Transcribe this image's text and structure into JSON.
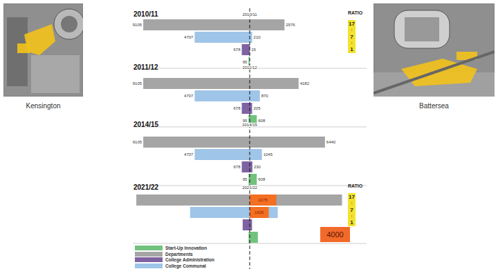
{
  "legend_entries": [
    "Start-Up Innovation",
    "Departments",
    "College Administration",
    "College Communal"
  ],
  "chart_data": [
    {
      "type": "bar",
      "title": "2010/11",
      "orientation": "horizontal",
      "categories": [
        "Departments",
        "College Communal",
        "College Administration",
        "Start-Up Innovation"
      ],
      "colors": [
        "#a5a5a5",
        "#9fc5e8",
        "#7f62a1",
        "#72c27e"
      ],
      "series": [
        {
          "name": "Kensington",
          "values": [
            9105,
            4707,
            678,
            95
          ]
        },
        {
          "name": "Battersea",
          "values": [
            2976,
            210,
            15,
            0
          ]
        }
      ],
      "xlim": [
        0,
        10000
      ],
      "xticks": [
        0,
        10000
      ],
      "tick_labels": false,
      "grid": false,
      "data_labels": true,
      "ratio": {
        "title": "RATIO",
        "values": [
          17,
          7,
          1
        ],
        "separator": ":",
        "color": "#f3e32c"
      }
    },
    {
      "type": "bar",
      "title": "2011/12",
      "orientation": "horizontal",
      "categories": [
        "Departments",
        "College Communal",
        "College Administration",
        "Start-Up Innovation"
      ],
      "colors": [
        "#a5a5a5",
        "#9fc5e8",
        "#7f62a1",
        "#72c27e"
      ],
      "series": [
        {
          "name": "Kensington",
          "values": [
            9105,
            4707,
            678,
            95
          ]
        },
        {
          "name": "Battersea",
          "values": [
            4182,
            870,
            205,
            608
          ]
        }
      ],
      "xlim": [
        0,
        10000
      ],
      "xticks": [
        0,
        10000
      ],
      "tick_labels": false,
      "grid": false,
      "data_labels": true
    },
    {
      "type": "bar",
      "title": "2014/15",
      "orientation": "horizontal",
      "categories": [
        "Departments",
        "College Communal",
        "College Administration",
        "Start-Up Innovation"
      ],
      "colors": [
        "#a5a5a5",
        "#9fc5e8",
        "#7f62a1",
        "#72c27e"
      ],
      "series": [
        {
          "name": "Kensington",
          "values": [
            9105,
            4707,
            678,
            95
          ]
        },
        {
          "name": "Battersea",
          "values": [
            6440,
            1045,
            230,
            608
          ]
        }
      ],
      "xlim": [
        0,
        10000
      ],
      "xticks": [
        0,
        10000
      ],
      "tick_labels": false,
      "grid": false,
      "data_labels": true
    },
    {
      "type": "bar",
      "title": "2021/22",
      "orientation": "horizontal",
      "categories": [
        "Departments",
        "College Communal",
        "College Administration",
        "Start-Up Innovation"
      ],
      "colors": [
        "#a5a5a5",
        "#9fc5e8",
        "#7f62a1",
        "#72c27e"
      ],
      "series": [
        {
          "name": "Kensington",
          "values": [
            9700,
            5100,
            600,
            95
          ]
        },
        {
          "name": "Battersea",
          "values": [
            7900,
            2400,
            200,
            700
          ]
        },
        {
          "color": "#f36f21",
          "values": [
            2275,
            1625,
            null,
            null
          ],
          "data_labels": true
        }
      ],
      "xlim": [
        0,
        10000
      ],
      "xticks": [
        0,
        10000
      ],
      "tick_labels": false,
      "grid": false,
      "data_labels": false,
      "ratio": {
        "title": "RATIO",
        "values": [
          17,
          7,
          1
        ],
        "separator": ":",
        "color": "#f3e32c"
      },
      "annotation": {
        "text": "4000",
        "color": "#f26a2a"
      }
    }
  ]
}
